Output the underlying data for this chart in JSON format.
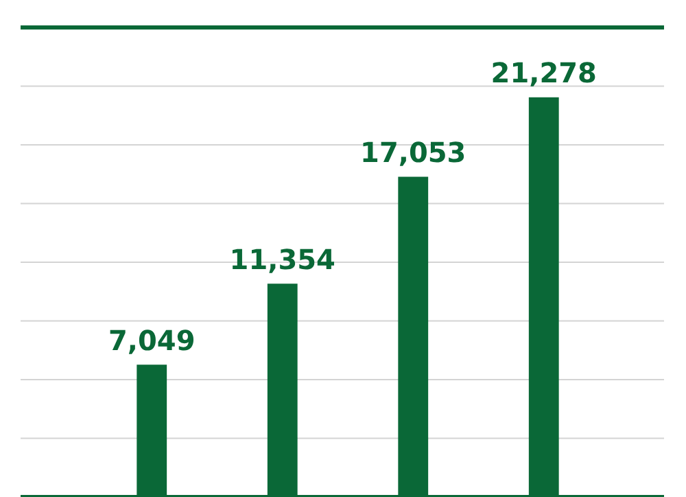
{
  "chart_data": {
    "type": "bar",
    "categories": [
      null,
      null,
      null,
      null
    ],
    "values": [
      7049,
      11354,
      17053,
      21278
    ],
    "color": "#0a6837",
    "value_labels": [
      "7,049",
      "11,354",
      "17,053",
      "21,278"
    ],
    "grid": "y"
  }
}
